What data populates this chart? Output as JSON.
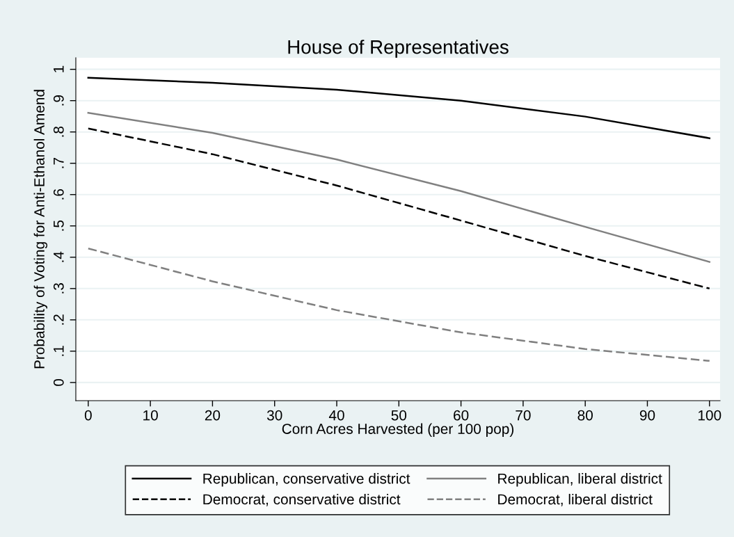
{
  "chart_data": {
    "type": "line",
    "title": "House of Representatives",
    "xlabel": "Corn Acres Harvested (per 100 pop)",
    "ylabel": "Probability of Voting for Anti-Ethanol Amend",
    "x": [
      0,
      20,
      40,
      60,
      80,
      100
    ],
    "series": [
      {
        "name": "Republican, conservative district",
        "color": "#000000",
        "line_style": "solid",
        "values": [
          0.973,
          0.957,
          0.935,
          0.9,
          0.849,
          0.78
        ]
      },
      {
        "name": "Republican, liberal district",
        "color": "#808080",
        "line_style": "solid",
        "values": [
          0.861,
          0.797,
          0.712,
          0.611,
          0.497,
          0.385
        ]
      },
      {
        "name": "Democrat, conservative district",
        "color": "#000000",
        "line_style": "dashed",
        "values": [
          0.811,
          0.729,
          0.629,
          0.517,
          0.404,
          0.3
        ]
      },
      {
        "name": "Democrat, liberal district",
        "color": "#808080",
        "line_style": "dashed",
        "values": [
          0.428,
          0.323,
          0.231,
          0.16,
          0.107,
          0.069
        ]
      }
    ],
    "xlim": [
      -2,
      101.7
    ],
    "ylim": [
      -0.058,
      1.037
    ],
    "xticks": [
      0,
      10,
      20,
      30,
      40,
      50,
      60,
      70,
      80,
      90,
      100
    ],
    "yticks": [
      0,
      {
        "value": 0.1,
        "label": ".1"
      },
      {
        "value": 0.2,
        "label": ".2"
      },
      {
        "value": 0.3,
        "label": ".3"
      },
      {
        "value": 0.4,
        "label": ".4"
      },
      {
        "value": 0.5,
        "label": ".5"
      },
      {
        "value": 0.6,
        "label": ".6"
      },
      {
        "value": 0.7,
        "label": ".7"
      },
      {
        "value": 0.8,
        "label": ".8"
      },
      {
        "value": 0.9,
        "label": ".9"
      },
      1
    ],
    "grid": "y",
    "legend": "bottom",
    "marker": "none"
  }
}
